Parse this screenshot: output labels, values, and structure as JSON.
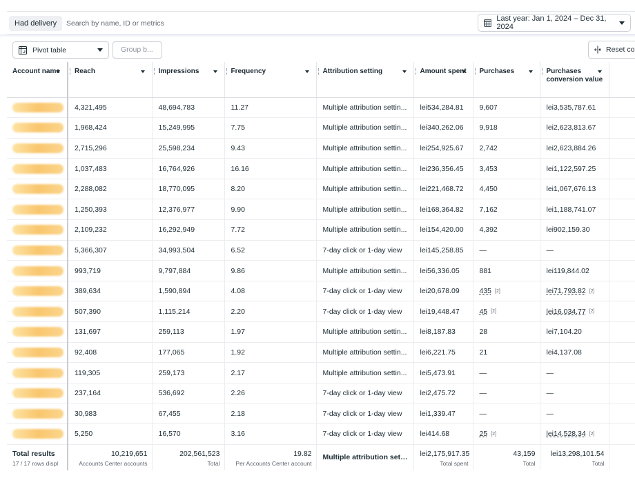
{
  "topbar": {
    "filter_chip": "Had delivery",
    "search_placeholder": "Search by name, ID or metrics",
    "date_range": "Last year: Jan 1, 2024 – Dec 31, 2024"
  },
  "toolbar": {
    "pivot": "Pivot table",
    "group_by": "Group b...",
    "reset": "Reset col"
  },
  "columns": [
    "Account name",
    "Reach",
    "Impressions",
    "Frequency",
    "Attribution setting",
    "Amount spent",
    "Purchases",
    "Purchases conversion value"
  ],
  "rows": [
    {
      "reach": "4,321,495",
      "impressions": "48,694,783",
      "frequency": "11.27",
      "attribution": "Multiple attribution settin...",
      "spent": "lei534,284.81",
      "purchases": "9,607",
      "purchases_note": "",
      "value": "lei3,535,787.61",
      "value_note": ""
    },
    {
      "reach": "1,968,424",
      "impressions": "15,249,995",
      "frequency": "7.75",
      "attribution": "Multiple attribution settin...",
      "spent": "lei340,262.06",
      "purchases": "9,918",
      "purchases_note": "",
      "value": "lei2,623,813.67",
      "value_note": ""
    },
    {
      "reach": "2,715,296",
      "impressions": "25,598,234",
      "frequency": "9.43",
      "attribution": "Multiple attribution settin...",
      "spent": "lei254,925.67",
      "purchases": "2,742",
      "purchases_note": "",
      "value": "lei2,623,884.26",
      "value_note": ""
    },
    {
      "reach": "1,037,483",
      "impressions": "16,764,926",
      "frequency": "16.16",
      "attribution": "Multiple attribution settin...",
      "spent": "lei236,356.45",
      "purchases": "3,453",
      "purchases_note": "",
      "value": "lei1,122,597.25",
      "value_note": ""
    },
    {
      "reach": "2,288,082",
      "impressions": "18,770,095",
      "frequency": "8.20",
      "attribution": "Multiple attribution settin...",
      "spent": "lei221,468.72",
      "purchases": "4,450",
      "purchases_note": "",
      "value": "lei1,067,676.13",
      "value_note": ""
    },
    {
      "reach": "1,250,393",
      "impressions": "12,376,977",
      "frequency": "9.90",
      "attribution": "Multiple attribution settin...",
      "spent": "lei168,364.82",
      "purchases": "7,162",
      "purchases_note": "",
      "value": "lei1,188,741.07",
      "value_note": ""
    },
    {
      "reach": "2,109,232",
      "impressions": "16,292,949",
      "frequency": "7.72",
      "attribution": "Multiple attribution settin...",
      "spent": "lei154,420.00",
      "purchases": "4,392",
      "purchases_note": "",
      "value": "lei902,159.30",
      "value_note": ""
    },
    {
      "reach": "5,366,307",
      "impressions": "34,993,504",
      "frequency": "6.52",
      "attribution": "7-day click or 1-day view",
      "spent": "lei145,258.85",
      "purchases": "—",
      "purchases_note": "",
      "value": "—",
      "value_note": ""
    },
    {
      "reach": "993,719",
      "impressions": "9,797,884",
      "frequency": "9.86",
      "attribution": "Multiple attribution settin...",
      "spent": "lei56,336.05",
      "purchases": "881",
      "purchases_note": "",
      "value": "lei119,844.02",
      "value_note": ""
    },
    {
      "reach": "389,634",
      "impressions": "1,590,894",
      "frequency": "4.08",
      "attribution": "7-day click or 1-day view",
      "spent": "lei20,678.09",
      "purchases": "435",
      "purchases_note": "[2]",
      "value": "lei71,793.82",
      "value_note": "[2]"
    },
    {
      "reach": "507,390",
      "impressions": "1,115,214",
      "frequency": "2.20",
      "attribution": "7-day click or 1-day view",
      "spent": "lei19,448.47",
      "purchases": "45",
      "purchases_note": "[2]",
      "value": "lei16,034.77",
      "value_note": "[2]"
    },
    {
      "reach": "131,697",
      "impressions": "259,113",
      "frequency": "1.97",
      "attribution": "Multiple attribution settin...",
      "spent": "lei8,187.83",
      "purchases": "28",
      "purchases_note": "",
      "value": "lei7,104.20",
      "value_note": ""
    },
    {
      "reach": "92,408",
      "impressions": "177,065",
      "frequency": "1.92",
      "attribution": "Multiple attribution settin...",
      "spent": "lei6,221.75",
      "purchases": "21",
      "purchases_note": "",
      "value": "lei4,137.08",
      "value_note": ""
    },
    {
      "reach": "119,305",
      "impressions": "259,173",
      "frequency": "2.17",
      "attribution": "Multiple attribution settin...",
      "spent": "lei5,473.91",
      "purchases": "—",
      "purchases_note": "",
      "value": "—",
      "value_note": ""
    },
    {
      "reach": "237,164",
      "impressions": "536,692",
      "frequency": "2.26",
      "attribution": "7-day click or 1-day view",
      "spent": "lei2,475.72",
      "purchases": "—",
      "purchases_note": "",
      "value": "—",
      "value_note": ""
    },
    {
      "reach": "30,983",
      "impressions": "67,455",
      "frequency": "2.18",
      "attribution": "7-day click or 1-day view",
      "spent": "lei1,339.47",
      "purchases": "—",
      "purchases_note": "",
      "value": "—",
      "value_note": ""
    },
    {
      "reach": "5,250",
      "impressions": "16,570",
      "frequency": "3.16",
      "attribution": "7-day click or 1-day view",
      "spent": "lei414.68",
      "purchases": "25",
      "purchases_note": "[2]",
      "value": "lei14,528.34",
      "value_note": "[2]"
    }
  ],
  "totals": {
    "title": "Total results",
    "rows_label": "17 / 17 rows displ",
    "reach": "10,219,651",
    "reach_sub": "Accounts Center accounts",
    "impressions": "202,561,523",
    "impressions_sub": "Total",
    "frequency": "19.82",
    "frequency_sub": "Per Accounts Center account",
    "attribution": "Multiple attribution setti...",
    "spent": "lei2,175,917.35",
    "spent_sub": "Total spent",
    "purchases": "43,159",
    "purchases_sub": "Total",
    "value": "lei13,298,101.54",
    "value_sub": "Total"
  },
  "icons": {
    "calendar": "calendar-icon",
    "pivot": "pivot-table-icon",
    "reset": "reset-columns-icon",
    "blurred_name": "redacted-account-name"
  }
}
